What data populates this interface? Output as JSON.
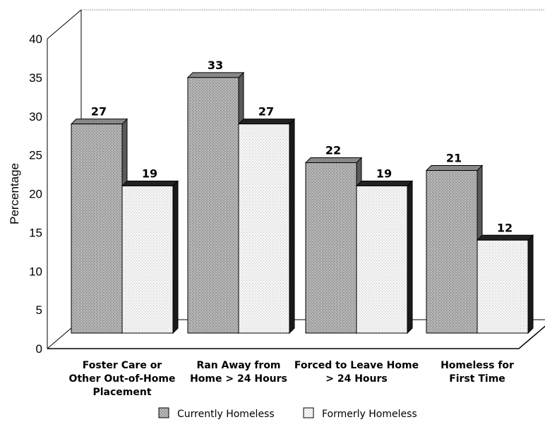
{
  "chart_data": {
    "type": "bar",
    "title": "",
    "xlabel": "",
    "ylabel": "Percentage",
    "ylim": [
      0,
      40
    ],
    "yticks": [
      0,
      5,
      10,
      15,
      20,
      25,
      30,
      35,
      40
    ],
    "categories": [
      [
        "Foster Care or",
        "Other Out-of-Home",
        "Placement"
      ],
      [
        "Ran Away from",
        "Home > 24 Hours"
      ],
      [
        "Forced to Leave Home",
        "> 24 Hours"
      ],
      [
        "Homeless for",
        "First Time"
      ]
    ],
    "series": [
      {
        "name": "Currently Homeless",
        "values": [
          27,
          33,
          22,
          21
        ],
        "color": "#a8a8a8"
      },
      {
        "name": "Formerly Homeless",
        "values": [
          19,
          27,
          19,
          12
        ],
        "color": "#f2f2f2"
      }
    ],
    "legend_position": "bottom-center",
    "grid": false,
    "style": "3d-bar"
  }
}
